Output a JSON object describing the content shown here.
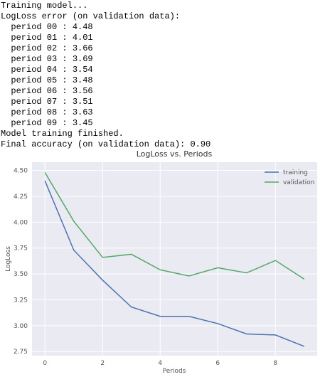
{
  "output_lines": [
    "Training model...",
    "LogLoss error (on validation data):",
    "  period 00 : 4.48",
    "  period 01 : 4.01",
    "  period 02 : 3.66",
    "  period 03 : 3.69",
    "  period 04 : 3.54",
    "  period 05 : 3.48",
    "  period 06 : 3.56",
    "  period 07 : 3.51",
    "  period 08 : 3.63",
    "  period 09 : 3.45",
    "Model training finished.",
    "Final accuracy (on validation data): 0.90"
  ],
  "chart_data": {
    "type": "line",
    "title": "LogLoss vs. Periods",
    "x_label": "Periods",
    "y_label": "LogLoss",
    "x": [
      0,
      1,
      2,
      3,
      4,
      5,
      6,
      7,
      8,
      9
    ],
    "series": [
      {
        "name": "training",
        "color": "#4c72b0",
        "values": [
          4.4,
          3.73,
          3.44,
          3.18,
          3.09,
          3.09,
          3.02,
          2.92,
          2.91,
          2.8
        ]
      },
      {
        "name": "validation",
        "color": "#55a868",
        "values": [
          4.48,
          4.01,
          3.66,
          3.69,
          3.54,
          3.48,
          3.56,
          3.51,
          3.63,
          3.45
        ]
      }
    ],
    "xlim": [
      -0.45,
      9.45
    ],
    "ylim": [
      2.71,
      4.58
    ],
    "xticks": [
      0,
      2,
      4,
      6,
      8
    ],
    "yticks": [
      2.75,
      {
        "value": 3,
        "label": "3.00"
      },
      3.25,
      {
        "value": 3.5,
        "label": "3.50"
      },
      3.75,
      {
        "value": 4,
        "label": "4.00"
      },
      4.25,
      {
        "value": 4.5,
        "label": "4.50"
      }
    ],
    "grid": true,
    "legend": "upper right"
  }
}
